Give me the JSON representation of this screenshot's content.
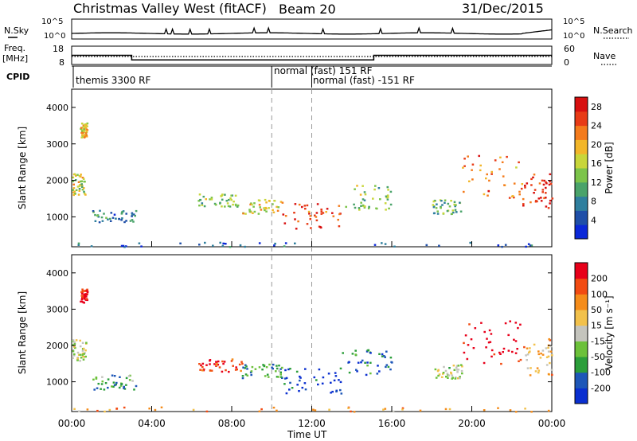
{
  "header": {
    "title": "Christmas Valley West (fitACF)",
    "beam": "Beam 20",
    "date": "31/Dec/2015"
  },
  "colors": {
    "power_scale": [
      "#0b28d8",
      "#1f4fa8",
      "#2f7f9e",
      "#4aa36a",
      "#7cc44a",
      "#c8d63a",
      "#f2b629",
      "#f47b1c",
      "#e83b16",
      "#d81010"
    ],
    "velocity_scale": [
      "#e8001a",
      "#f24b12",
      "#f58c1a",
      "#f2c14b",
      "#c4c4bd",
      "#6cc13a",
      "#2b9e3a",
      "#1e57b8",
      "#0a2fd0"
    ]
  },
  "noise_panel": {
    "left_label": "N.Sky",
    "left_ticks": [
      "10^5",
      "10^0"
    ],
    "right_ticks": [
      "10^5",
      "10^0"
    ],
    "right_label": "N.Search"
  },
  "freq_panel": {
    "left_label": "Freq.",
    "left_unit": "[MHz]",
    "left_ticks": [
      "18",
      "8"
    ],
    "right_ticks": [
      "60",
      "0"
    ],
    "right_label": "Nave",
    "freq_steps": [
      {
        "from": 0,
        "to": 3.0,
        "value": 13.0
      },
      {
        "from": 3.0,
        "to": 15.1,
        "value": 10.5
      },
      {
        "from": 15.1,
        "to": 24,
        "value": 13.0
      }
    ]
  },
  "cpid_panel": {
    "label": "CPID",
    "segments": [
      {
        "start": 0,
        "text": "themis 3300 RF"
      },
      {
        "start": 10.0,
        "text": "normal (fast) 151 RF"
      },
      {
        "start": 12.0,
        "text": "normal (fast) -151 RF"
      }
    ]
  },
  "chart_data": [
    {
      "type": "heatmap",
      "name": "Power",
      "ylabel": "Slant Range [km]",
      "yticks": [
        "1000",
        "2000",
        "3000",
        "4000"
      ],
      "ylim": [
        180,
        4500
      ],
      "colorbar": {
        "label": "Power [dB]",
        "ticks": [
          "4",
          "8",
          "12",
          "16",
          "20",
          "24",
          "28"
        ],
        "range": [
          0,
          30
        ]
      },
      "echo_regions": [
        {
          "t0": 0.0,
          "t1": 0.7,
          "r0": 1600,
          "r1": 2200,
          "level": 0.55
        },
        {
          "t0": 0.4,
          "t1": 0.75,
          "r0": 3200,
          "r1": 3600,
          "level": 0.6
        },
        {
          "t0": 1.0,
          "t1": 3.2,
          "r0": 800,
          "r1": 1200,
          "level": 0.25
        },
        {
          "t0": 6.3,
          "t1": 8.5,
          "r0": 1300,
          "r1": 1650,
          "level": 0.45
        },
        {
          "t0": 8.5,
          "t1": 10.5,
          "r0": 1100,
          "r1": 1500,
          "level": 0.6
        },
        {
          "t0": 10.5,
          "t1": 13.5,
          "r0": 700,
          "r1": 1400,
          "level": 0.85
        },
        {
          "t0": 13.5,
          "t1": 16.0,
          "r0": 1200,
          "r1": 1900,
          "level": 0.45
        },
        {
          "t0": 18.0,
          "t1": 19.5,
          "r0": 1100,
          "r1": 1500,
          "level": 0.4
        },
        {
          "t0": 19.5,
          "t1": 22.5,
          "r0": 1500,
          "r1": 2700,
          "level": 0.75
        },
        {
          "t0": 22.5,
          "t1": 24.0,
          "r0": 1200,
          "r1": 2200,
          "level": 0.9
        },
        {
          "t0": 0.0,
          "t1": 24.0,
          "r0": 200,
          "r1": 320,
          "level": 0.15
        }
      ]
    },
    {
      "type": "heatmap",
      "name": "Velocity",
      "ylabel": "Slant Range [km]",
      "yticks": [
        "1000",
        "2000",
        "3000",
        "4000"
      ],
      "ylim": [
        180,
        4500
      ],
      "colorbar": {
        "label": "Velocity [m s⁻¹]",
        "ticks": [
          "200",
          "100",
          "50",
          "15",
          "-15",
          "-50",
          "-100",
          "-200"
        ],
        "range": [
          -250,
          250
        ]
      },
      "echo_regions": [
        {
          "t0": 0.0,
          "t1": 0.7,
          "r0": 1600,
          "r1": 2200,
          "level": 0.5
        },
        {
          "t0": 0.4,
          "t1": 0.75,
          "r0": 3200,
          "r1": 3600,
          "level": 0.05
        },
        {
          "t0": 1.0,
          "t1": 3.2,
          "r0": 800,
          "r1": 1200,
          "level": 0.7
        },
        {
          "t0": 6.3,
          "t1": 8.5,
          "r0": 1300,
          "r1": 1650,
          "level": 0.12
        },
        {
          "t0": 8.5,
          "t1": 10.5,
          "r0": 1100,
          "r1": 1500,
          "level": 0.72
        },
        {
          "t0": 10.5,
          "t1": 13.5,
          "r0": 700,
          "r1": 1400,
          "level": 0.92
        },
        {
          "t0": 13.5,
          "t1": 16.0,
          "r0": 1200,
          "r1": 1900,
          "level": 0.78
        },
        {
          "t0": 18.0,
          "t1": 19.5,
          "r0": 1100,
          "r1": 1500,
          "level": 0.5
        },
        {
          "t0": 19.5,
          "t1": 22.5,
          "r0": 1500,
          "r1": 2700,
          "level": 0.02
        },
        {
          "t0": 22.5,
          "t1": 24.0,
          "r0": 1200,
          "r1": 2200,
          "level": 0.35
        },
        {
          "t0": 0.0,
          "t1": 24.0,
          "r0": 200,
          "r1": 320,
          "level": 0.3
        }
      ]
    }
  ],
  "time_axis": {
    "ticks": [
      "00:00",
      "04:00",
      "08:00",
      "12:00",
      "16:00",
      "20:00",
      "00:00"
    ],
    "label": "Time UT"
  }
}
